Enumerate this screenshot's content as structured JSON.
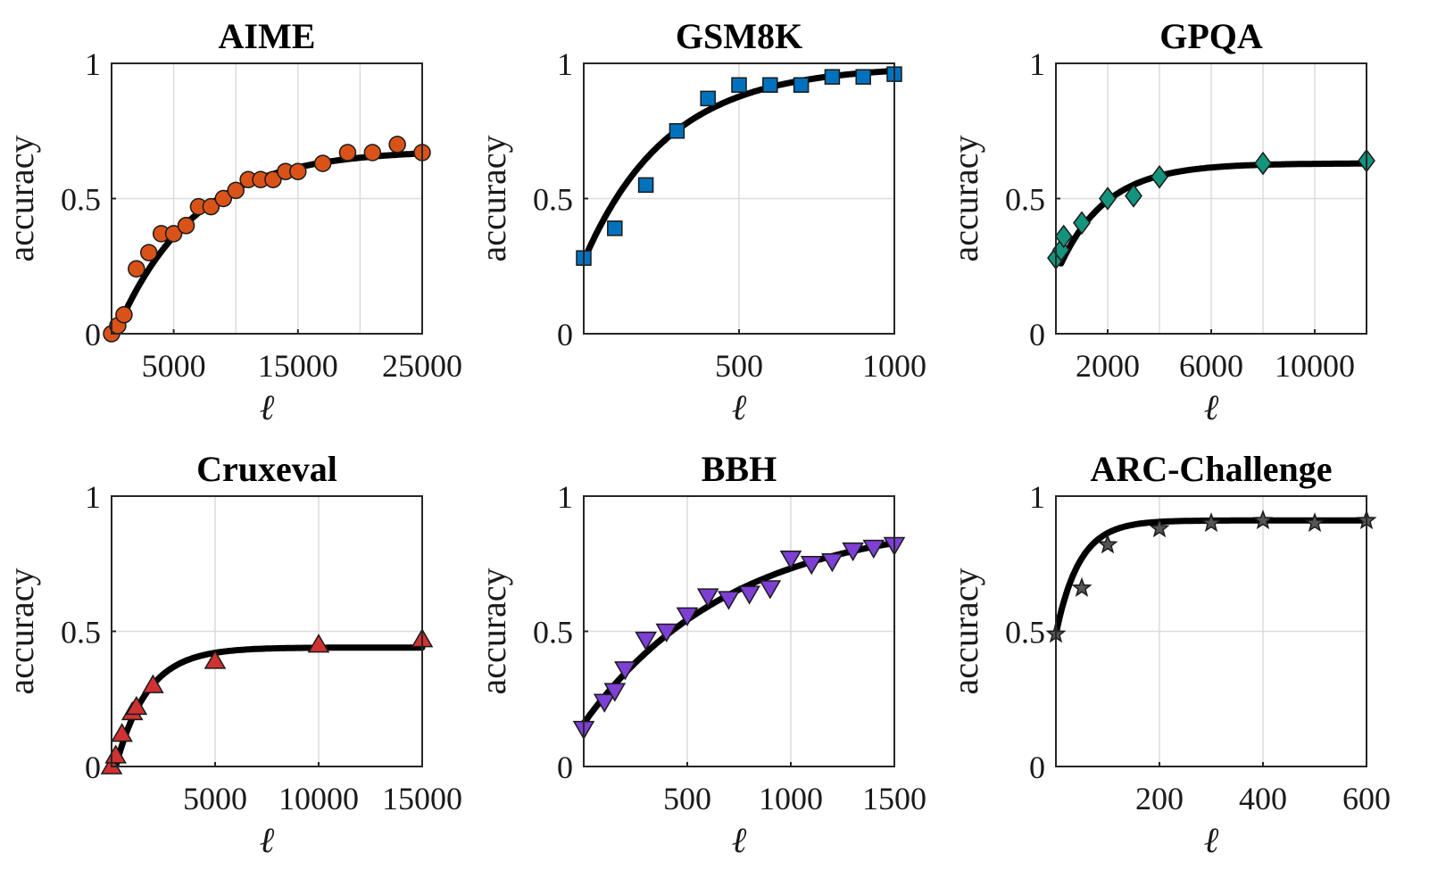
{
  "chart_data": [
    {
      "type": "scatter",
      "title": "AIME",
      "xlabel": "ℓ",
      "ylabel": "accuracy",
      "xlim": [
        0,
        25000
      ],
      "ylim": [
        0,
        1
      ],
      "xticks": [
        5000,
        15000,
        25000
      ],
      "xtick_labels": [
        "5000",
        "15000",
        "25000"
      ],
      "yticks": [
        0,
        0.5,
        1
      ],
      "ytick_labels": [
        "0",
        "0.5",
        "1"
      ],
      "xgrid": [
        5000,
        10000,
        15000,
        20000,
        25000
      ],
      "ygrid": [
        0.5
      ],
      "marker": "circle",
      "color": "#D95319",
      "fit": {
        "a": 0.68,
        "k": 0.00016,
        "x0": 300
      },
      "x": [
        0,
        500,
        1000,
        2000,
        3000,
        4000,
        5000,
        6000,
        7000,
        8000,
        9000,
        10000,
        11000,
        12000,
        13000,
        14000,
        15000,
        17000,
        19000,
        21000,
        23000,
        25000
      ],
      "y": [
        0.0,
        0.03,
        0.07,
        0.24,
        0.3,
        0.37,
        0.37,
        0.4,
        0.47,
        0.47,
        0.5,
        0.53,
        0.57,
        0.57,
        0.57,
        0.6,
        0.6,
        0.63,
        0.67,
        0.67,
        0.7,
        0.67
      ]
    },
    {
      "type": "scatter",
      "title": "GSM8K",
      "xlabel": "ℓ",
      "ylabel": "accuracy",
      "xlim": [
        0,
        1000
      ],
      "ylim": [
        0,
        1
      ],
      "xticks": [
        500,
        1000
      ],
      "xtick_labels": [
        "500",
        "1000"
      ],
      "yticks": [
        0,
        0.5,
        1
      ],
      "ytick_labels": [
        "0",
        "0.5",
        "1"
      ],
      "xgrid": [
        500,
        1000
      ],
      "ygrid": [
        0.5
      ],
      "marker": "square",
      "color": "#0072BD",
      "fit": {
        "a": 0.99,
        "b": 0.72,
        "k": 0.0037
      },
      "x": [
        0,
        100,
        200,
        300,
        400,
        500,
        600,
        700,
        800,
        900,
        1000
      ],
      "y": [
        0.28,
        0.39,
        0.55,
        0.75,
        0.87,
        0.92,
        0.92,
        0.92,
        0.95,
        0.95,
        0.96
      ]
    },
    {
      "type": "scatter",
      "title": "GPQA",
      "xlabel": "ℓ",
      "ylabel": "accuracy",
      "xlim": [
        0,
        12000
      ],
      "ylim": [
        0,
        1
      ],
      "xticks": [
        2000,
        6000,
        10000
      ],
      "xtick_labels": [
        "2000",
        "6000",
        "10000"
      ],
      "yticks": [
        0,
        0.5,
        1
      ],
      "ytick_labels": [
        "0",
        "0.5",
        "1"
      ],
      "xgrid": [
        2000,
        4000,
        6000,
        8000,
        10000,
        12000
      ],
      "ygrid": [
        0.5
      ],
      "marker": "diamond",
      "color": "#14947C",
      "fit": {
        "a": 0.63,
        "b": 0.37,
        "k": 0.00055,
        "x0": 200
      },
      "x": [
        0,
        200,
        300,
        1000,
        2000,
        3000,
        4000,
        8000,
        12000
      ],
      "y": [
        0.28,
        0.31,
        0.36,
        0.41,
        0.5,
        0.51,
        0.58,
        0.63,
        0.64
      ]
    },
    {
      "type": "scatter",
      "title": "Cruxeval",
      "xlabel": "ℓ",
      "ylabel": "accuracy",
      "xlim": [
        0,
        15000
      ],
      "ylim": [
        0,
        1
      ],
      "xticks": [
        5000,
        10000,
        15000
      ],
      "xtick_labels": [
        "5000",
        "10000",
        "15000"
      ],
      "yticks": [
        0,
        0.5,
        1
      ],
      "ytick_labels": [
        "0",
        "0.5",
        "1"
      ],
      "xgrid": [
        5000,
        10000,
        15000
      ],
      "ygrid": [
        0.5
      ],
      "marker": "triangle-up",
      "color": "#D03232",
      "fit": {
        "a": 0.44,
        "k": 0.00065,
        "x0": 200
      },
      "x": [
        0,
        200,
        500,
        1000,
        1200,
        2000,
        5000,
        10000,
        15000
      ],
      "y": [
        0.0,
        0.04,
        0.12,
        0.2,
        0.22,
        0.3,
        0.39,
        0.45,
        0.47
      ]
    },
    {
      "type": "scatter",
      "title": "BBH",
      "xlabel": "ℓ",
      "ylabel": "accuracy",
      "xlim": [
        0,
        1500
      ],
      "ylim": [
        0,
        1
      ],
      "xticks": [
        500,
        1000,
        1500
      ],
      "xtick_labels": [
        "500",
        "1000",
        "1500"
      ],
      "yticks": [
        0,
        0.5,
        1
      ],
      "ytick_labels": [
        "0",
        "0.5",
        "1"
      ],
      "xgrid": [
        500,
        1000,
        1500
      ],
      "ygrid": [
        0.5
      ],
      "marker": "triangle-down",
      "color": "#7E3FD4",
      "fit": {
        "a": 0.92,
        "b": 0.76,
        "k": 0.0014
      },
      "x": [
        0,
        100,
        150,
        200,
        300,
        400,
        500,
        600,
        700,
        800,
        900,
        1000,
        1100,
        1200,
        1300,
        1400,
        1500
      ],
      "y": [
        0.14,
        0.24,
        0.28,
        0.36,
        0.47,
        0.5,
        0.56,
        0.63,
        0.62,
        0.64,
        0.66,
        0.77,
        0.75,
        0.76,
        0.8,
        0.81,
        0.82
      ]
    },
    {
      "type": "scatter",
      "title": "ARC-Challenge",
      "xlabel": "ℓ",
      "ylabel": "accuracy",
      "xlim": [
        0,
        600
      ],
      "ylim": [
        0,
        1
      ],
      "xticks": [
        200,
        400,
        600
      ],
      "xtick_labels": [
        "200",
        "400",
        "600"
      ],
      "yticks": [
        0,
        0.5,
        1
      ],
      "ytick_labels": [
        "0",
        "0.5",
        "1"
      ],
      "xgrid": [
        200,
        400,
        600
      ],
      "ygrid": [
        0.5
      ],
      "marker": "star",
      "color": "#555555",
      "fit": {
        "a": 0.91,
        "b": 0.42,
        "k": 0.022
      },
      "x": [
        0,
        50,
        100,
        200,
        300,
        400,
        500,
        600
      ],
      "y": [
        0.49,
        0.66,
        0.82,
        0.88,
        0.9,
        0.91,
        0.9,
        0.91
      ]
    }
  ]
}
